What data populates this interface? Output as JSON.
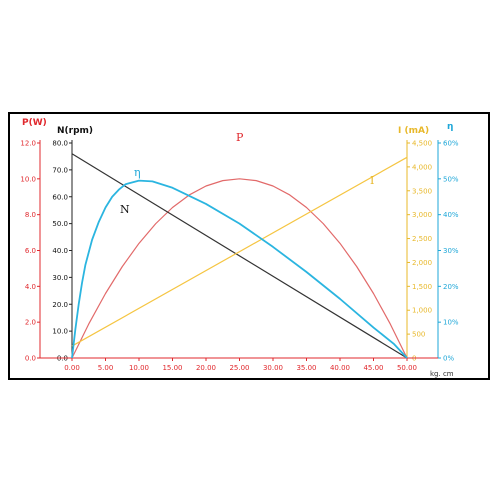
{
  "chart_data": {
    "type": "line",
    "x_unit_label": "kg. cm",
    "x_ticks": [
      "0.00",
      "5.00",
      "10.00",
      "15.00",
      "20.00",
      "25.00",
      "30.00",
      "35.00",
      "40.00",
      "45.00",
      "50.00"
    ],
    "xlim": [
      0,
      50
    ],
    "axes": {
      "power": {
        "title": "P(W)",
        "color": "#e0282d",
        "ticks": [
          "0.0",
          "2.0",
          "4.0",
          "6.0",
          "8.0",
          "10.0",
          "12.0"
        ],
        "range": [
          0,
          12
        ]
      },
      "speed": {
        "title": "N(rpm)",
        "color": "#111111",
        "ticks": [
          "0.0",
          "10.0",
          "20.0",
          "30.0",
          "40.0",
          "50.0",
          "60.0",
          "70.0",
          "80.0"
        ],
        "range": [
          0,
          80
        ]
      },
      "current": {
        "title": "I (mA)",
        "color": "#e8b82a",
        "ticks": [
          "0",
          "500",
          "1,000",
          "1,500",
          "2,000",
          "2,500",
          "3,000",
          "3,500",
          "4,000",
          "4,500"
        ],
        "range": [
          0,
          4500
        ]
      },
      "efficiency": {
        "title": "η",
        "color": "#1ea7d8",
        "ticks": [
          "0%",
          "10%",
          "20%",
          "30%",
          "40%",
          "50%",
          "60%"
        ],
        "range": [
          0,
          60
        ]
      }
    },
    "series": [
      {
        "name": "P",
        "axis": "power",
        "color": "#e26a6a",
        "x": [
          0,
          2.5,
          5,
          7.5,
          10,
          12.5,
          15,
          17.5,
          20,
          22.5,
          25,
          27.5,
          30,
          32.5,
          35,
          37.5,
          40,
          42.5,
          45,
          47.5,
          50
        ],
        "y": [
          0,
          1.9,
          3.6,
          5.1,
          6.4,
          7.5,
          8.4,
          9.1,
          9.6,
          9.9,
          10.0,
          9.9,
          9.6,
          9.1,
          8.4,
          7.5,
          6.4,
          5.1,
          3.6,
          1.9,
          0
        ]
      },
      {
        "name": "N",
        "axis": "speed",
        "color": "#333333",
        "x": [
          0,
          50
        ],
        "y": [
          76,
          0
        ]
      },
      {
        "name": "I",
        "axis": "current",
        "color": "#f5c542",
        "x": [
          0,
          50
        ],
        "y": [
          250,
          4200
        ]
      },
      {
        "name": "η",
        "axis": "efficiency",
        "color": "#2bb5e0",
        "x": [
          0,
          0.5,
          1,
          1.5,
          2,
          3,
          4,
          5,
          6,
          7,
          8,
          10,
          12,
          15,
          20,
          25,
          30,
          35,
          40,
          45,
          48,
          50
        ],
        "y": [
          0,
          8,
          15,
          21,
          26,
          33,
          38,
          42,
          45,
          47,
          48.5,
          49.5,
          49.3,
          47.5,
          43,
          37.5,
          31,
          24,
          16.5,
          8.5,
          4,
          0
        ]
      }
    ],
    "curve_labels": {
      "P": {
        "text": "P",
        "color": "#e0282d"
      },
      "N": {
        "text": "N",
        "color": "#111111"
      },
      "I": {
        "text": "I",
        "color": "#e8b82a"
      },
      "eta": {
        "text": "η",
        "color": "#1ea7d8"
      }
    },
    "grid": false,
    "legend": "none"
  }
}
